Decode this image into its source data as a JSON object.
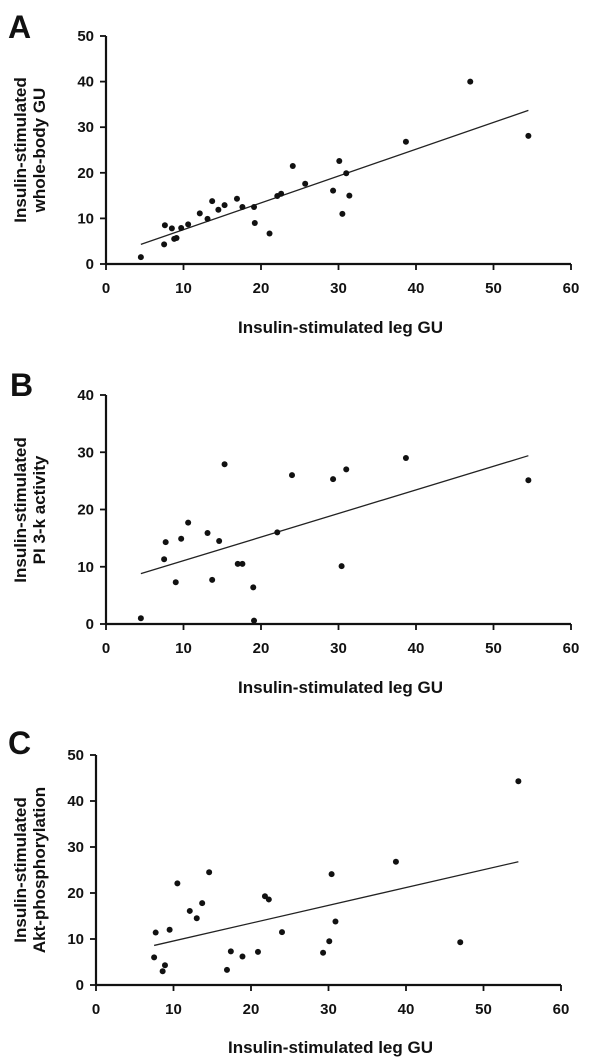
{
  "chart_data": [
    {
      "type": "scatter",
      "panel_label": "A",
      "xlabel": "Insulin-stimulated leg GU",
      "ylabel": [
        "Insulin-stimulated",
        "whole-body GU"
      ],
      "xlim": [
        0,
        60
      ],
      "ylim": [
        0,
        50
      ],
      "xticks": [
        0,
        10,
        20,
        30,
        40,
        50,
        60
      ],
      "yticks": [
        0,
        10,
        20,
        30,
        40,
        50
      ],
      "trendline": {
        "x": [
          4.5,
          54.5
        ],
        "y": [
          4.3,
          33.7
        ]
      },
      "points": [
        {
          "x": 4.5,
          "y": 1.5
        },
        {
          "x": 7.5,
          "y": 4.3
        },
        {
          "x": 7.6,
          "y": 8.5
        },
        {
          "x": 8.5,
          "y": 7.8
        },
        {
          "x": 8.8,
          "y": 5.5
        },
        {
          "x": 9.1,
          "y": 5.7
        },
        {
          "x": 9.7,
          "y": 7.9
        },
        {
          "x": 10.6,
          "y": 8.7
        },
        {
          "x": 12.1,
          "y": 11.1
        },
        {
          "x": 13.1,
          "y": 9.9
        },
        {
          "x": 13.7,
          "y": 13.8
        },
        {
          "x": 14.5,
          "y": 11.9
        },
        {
          "x": 15.3,
          "y": 12.9
        },
        {
          "x": 16.9,
          "y": 14.3
        },
        {
          "x": 17.6,
          "y": 12.5
        },
        {
          "x": 19.1,
          "y": 12.5
        },
        {
          "x": 19.2,
          "y": 9.0
        },
        {
          "x": 21.1,
          "y": 6.7
        },
        {
          "x": 22.1,
          "y": 14.9
        },
        {
          "x": 22.6,
          "y": 15.4
        },
        {
          "x": 24.1,
          "y": 21.5
        },
        {
          "x": 25.7,
          "y": 17.6
        },
        {
          "x": 29.3,
          "y": 16.1
        },
        {
          "x": 30.1,
          "y": 22.6
        },
        {
          "x": 30.5,
          "y": 11.0
        },
        {
          "x": 31.0,
          "y": 19.9
        },
        {
          "x": 31.4,
          "y": 15.0
        },
        {
          "x": 38.7,
          "y": 26.8
        },
        {
          "x": 47.0,
          "y": 40.0
        },
        {
          "x": 54.5,
          "y": 28.1
        }
      ]
    },
    {
      "type": "scatter",
      "panel_label": "B",
      "xlabel": "Insulin-stimulated leg GU",
      "ylabel": [
        "Insulin-stimulated",
        "PI 3-k activity"
      ],
      "xlim": [
        0,
        60
      ],
      "ylim": [
        0,
        40
      ],
      "xticks": [
        0,
        10,
        20,
        30,
        40,
        50,
        60
      ],
      "yticks": [
        0,
        10,
        20,
        30,
        40
      ],
      "trendline": {
        "x": [
          4.5,
          54.5
        ],
        "y": [
          8.8,
          29.4
        ]
      },
      "points": [
        {
          "x": 4.5,
          "y": 1.0
        },
        {
          "x": 7.5,
          "y": 11.3
        },
        {
          "x": 7.7,
          "y": 14.3
        },
        {
          "x": 9.0,
          "y": 7.3
        },
        {
          "x": 9.7,
          "y": 14.9
        },
        {
          "x": 10.6,
          "y": 17.7
        },
        {
          "x": 13.1,
          "y": 15.9
        },
        {
          "x": 13.7,
          "y": 7.7
        },
        {
          "x": 14.6,
          "y": 14.5
        },
        {
          "x": 15.3,
          "y": 27.9
        },
        {
          "x": 17.0,
          "y": 10.5
        },
        {
          "x": 17.6,
          "y": 10.5
        },
        {
          "x": 19.0,
          "y": 6.4
        },
        {
          "x": 19.1,
          "y": 0.6
        },
        {
          "x": 22.1,
          "y": 16.0
        },
        {
          "x": 24.0,
          "y": 26.0
        },
        {
          "x": 29.3,
          "y": 25.3
        },
        {
          "x": 30.4,
          "y": 10.1
        },
        {
          "x": 31.0,
          "y": 27.0
        },
        {
          "x": 38.7,
          "y": 29.0
        },
        {
          "x": 54.5,
          "y": 25.1
        }
      ]
    },
    {
      "type": "scatter",
      "panel_label": "C",
      "xlabel": "Insulin-stimulated leg GU",
      "ylabel": [
        "Insulin-stimulated",
        "Akt-phosphorylation"
      ],
      "xlim": [
        0,
        60
      ],
      "ylim": [
        0,
        50
      ],
      "xticks": [
        0,
        10,
        20,
        30,
        40,
        50,
        60
      ],
      "yticks": [
        0,
        10,
        20,
        30,
        40,
        50
      ],
      "trendline": {
        "x": [
          7.5,
          54.5
        ],
        "y": [
          8.6,
          26.8
        ]
      },
      "points": [
        {
          "x": 7.5,
          "y": 6.0
        },
        {
          "x": 7.7,
          "y": 11.4
        },
        {
          "x": 8.6,
          "y": 3.0
        },
        {
          "x": 8.9,
          "y": 4.3
        },
        {
          "x": 9.5,
          "y": 12.0
        },
        {
          "x": 10.5,
          "y": 22.1
        },
        {
          "x": 12.1,
          "y": 16.1
        },
        {
          "x": 13.0,
          "y": 14.5
        },
        {
          "x": 13.7,
          "y": 17.8
        },
        {
          "x": 14.6,
          "y": 24.5
        },
        {
          "x": 16.9,
          "y": 3.3
        },
        {
          "x": 17.4,
          "y": 7.3
        },
        {
          "x": 18.9,
          "y": 6.2
        },
        {
          "x": 20.9,
          "y": 7.2
        },
        {
          "x": 21.8,
          "y": 19.3
        },
        {
          "x": 22.3,
          "y": 18.6
        },
        {
          "x": 24.0,
          "y": 11.5
        },
        {
          "x": 29.3,
          "y": 7.0
        },
        {
          "x": 30.1,
          "y": 9.5
        },
        {
          "x": 30.4,
          "y": 24.1
        },
        {
          "x": 30.9,
          "y": 13.8
        },
        {
          "x": 38.7,
          "y": 26.8
        },
        {
          "x": 47.0,
          "y": 9.3
        },
        {
          "x": 54.5,
          "y": 44.3
        }
      ]
    }
  ]
}
